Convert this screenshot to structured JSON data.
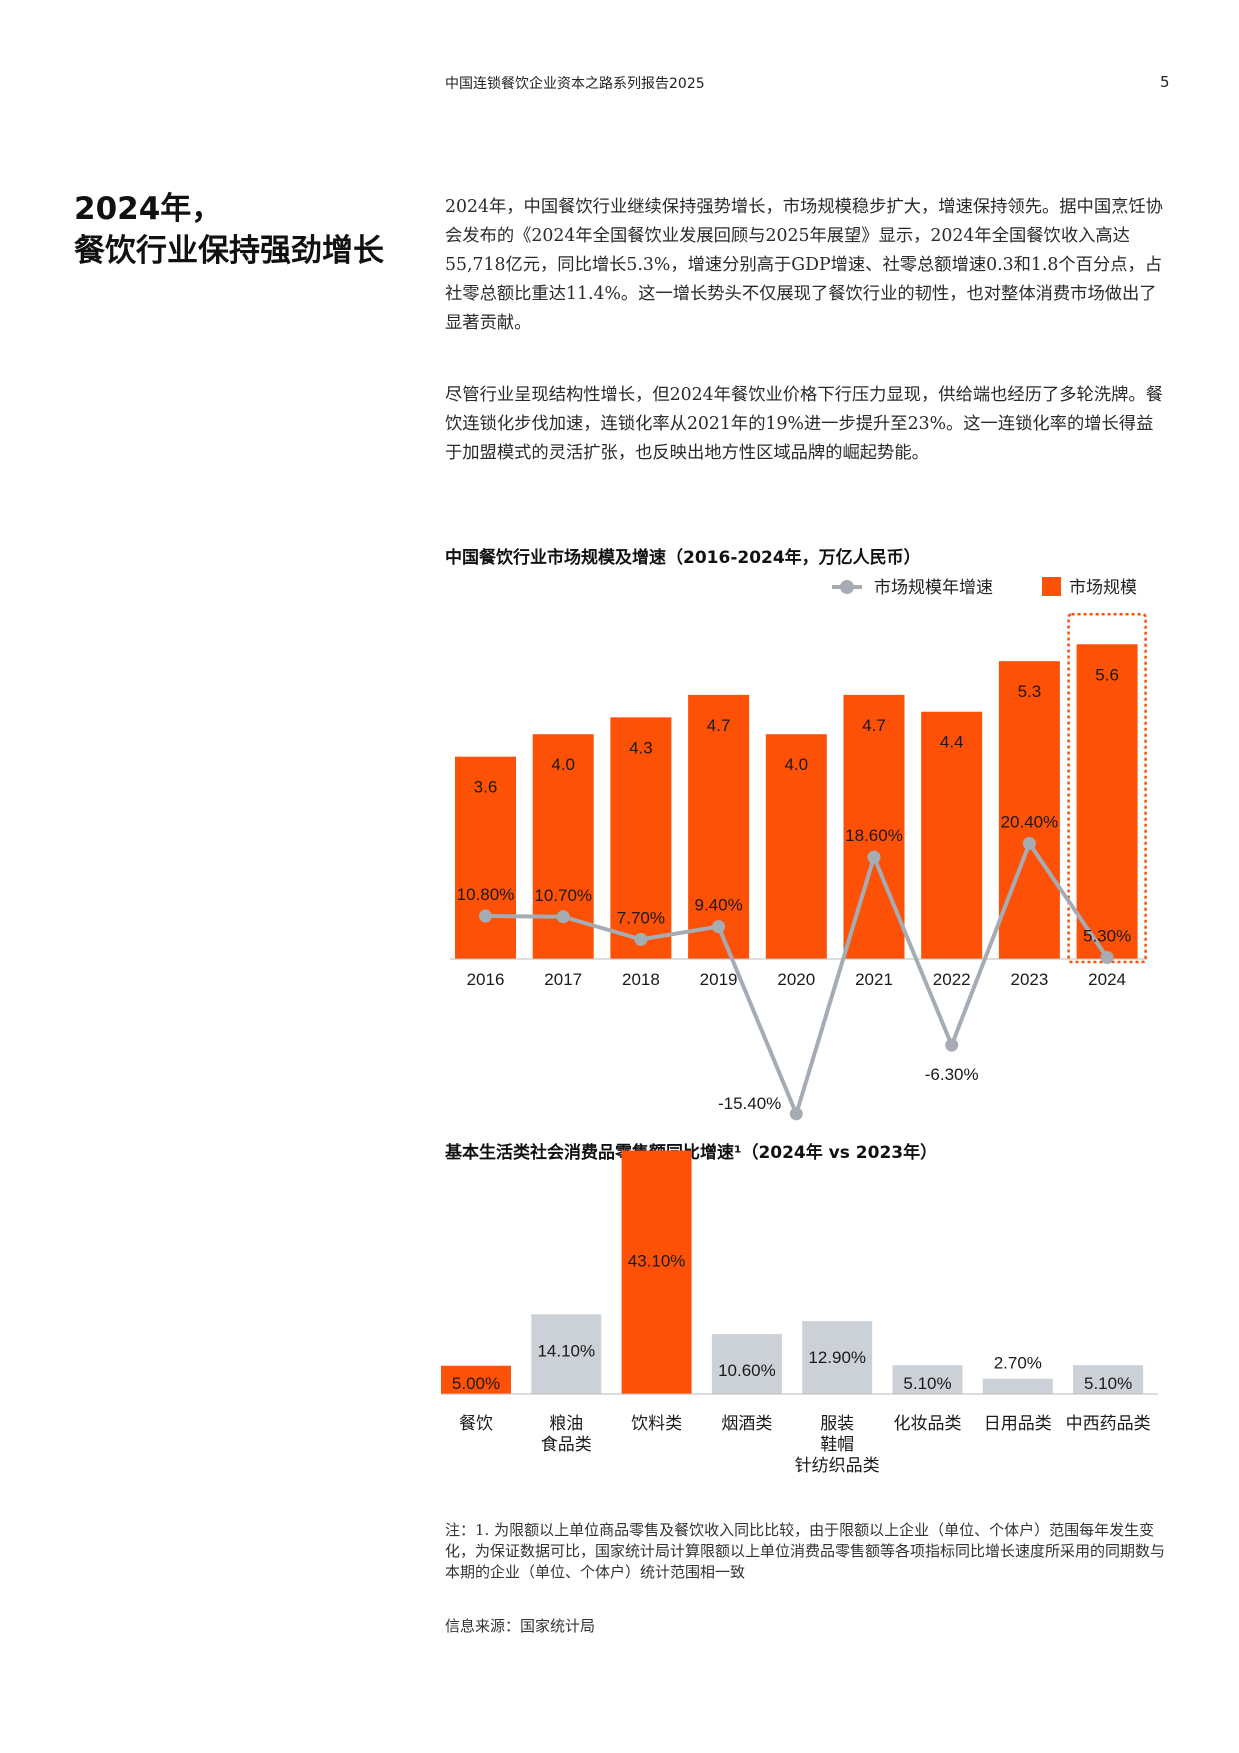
{
  "header": {
    "title": "中国连锁餐饮企业资本之路系列报告2025",
    "page_number": "5"
  },
  "section": {
    "title_line1": "2024年，",
    "title_line2": "餐饮行业保持强劲增长"
  },
  "paragraphs": [
    "2024年，中国餐饮行业继续保持强势增长，市场规模稳步扩大，增速保持领先。据中国烹饪协会发布的《2024年全国餐饮业发展回顾与2025年展望》显示，2024年全国餐饮收入高达55,718亿元，同比增长5.3%，增速分别高于GDP增速、社零总额增速0.3和1.8个百分点，占社零总额比重达11.4%。这一增长势头不仅展现了餐饮行业的韧性，也对整体消费市场做出了显著贡献。",
    "尽管行业呈现结构性增长，但2024年餐饮业价格下行压力显现，供给端也经历了多轮洗牌。餐饮连锁化步伐加速，连锁化率从2021年的19%进一步提升至23%。这一连锁化率的增长得益于加盟模式的灵活扩张，也反映出地方性区域品牌的崛起势能。"
  ],
  "colors": {
    "orange": "#fd5108",
    "grey_bar": "#cbd1d6",
    "grey_line": "#a5acb3",
    "dotted_highlight": "#fd5108"
  },
  "chart_data": [
    {
      "type": "bar",
      "title": "中国餐饮行业市场规模及增速（2016-2024年，万亿人民币）",
      "categories": [
        "2016",
        "2017",
        "2018",
        "2019",
        "2020",
        "2021",
        "2022",
        "2023",
        "2024"
      ],
      "series": [
        {
          "name": "市场规模",
          "kind": "bar",
          "values": [
            3.6,
            4.0,
            4.3,
            4.7,
            4.0,
            4.7,
            4.4,
            5.3,
            5.6
          ],
          "labels": [
            "3.6",
            "4.0",
            "4.3",
            "4.7",
            "4.0",
            "4.7",
            "4.4",
            "5.3",
            "5.6"
          ]
        },
        {
          "name": "市场规模年增速",
          "kind": "line",
          "values": [
            10.8,
            10.7,
            7.7,
            9.4,
            -15.4,
            18.6,
            -6.3,
            20.4,
            5.3
          ],
          "labels": [
            "10.80%",
            "10.70%",
            "7.70%",
            "9.40%",
            "-15.40%",
            "18.60%",
            "-6.30%",
            "20.40%",
            "5.30%"
          ]
        }
      ],
      "legend": [
        "市场规模年增速",
        "市场规模"
      ],
      "legend_position": "top-right",
      "highlight_category": "2024"
    },
    {
      "type": "bar",
      "title": "基本生活类社会消费品零售额同比增速¹（2024年 vs 2023年）",
      "categories": [
        "餐饮",
        "粮油食品类",
        "饮料类",
        "烟酒类",
        "服装鞋帽针纺织品类",
        "化妆品类",
        "日用品类",
        "中西药品类"
      ],
      "category_lines": [
        [
          "餐饮"
        ],
        [
          "粮油",
          "食品类"
        ],
        [
          "饮料类"
        ],
        [
          "烟酒类"
        ],
        [
          "服装",
          "鞋帽",
          "针纺织品类"
        ],
        [
          "化妆品类"
        ],
        [
          "日用品类"
        ],
        [
          "中西药品类"
        ]
      ],
      "values": [
        5.0,
        14.1,
        43.1,
        10.6,
        12.9,
        5.1,
        2.7,
        5.1
      ],
      "labels": [
        "5.00%",
        "14.10%",
        "43.10%",
        "10.60%",
        "12.90%",
        "5.10%",
        "2.70%",
        "5.10%"
      ],
      "highlighted": [
        true,
        false,
        true,
        false,
        false,
        false,
        false,
        false
      ]
    }
  ],
  "note": "注：1. 为限额以上单位商品零售及餐饮收入同比比较，由于限额以上企业（单位、个体户）范围每年发生变化，为保证数据可比，国家统计局计算限额以上单位消费品零售额等各项指标同比增长速度所采用的同期数与本期的企业（单位、个体户）统计范围相一致",
  "source": "信息来源：国家统计局"
}
